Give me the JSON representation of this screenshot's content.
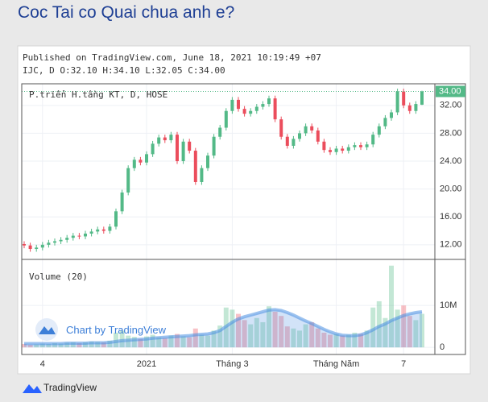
{
  "post": {
    "title": "Coc Tai co Quai chua anh e?"
  },
  "chart_data": {
    "type": "candlestick",
    "published": "Published on TradingView.com, June 18, 2021 10:19:49 +07",
    "legend": "IJC, D O:32.10 H:34.10 L:32.05 C:34.00",
    "pane_title": "P.triển H.tầng KT, D, HOSE",
    "categories": [
      null,
      null,
      null,
      "4",
      null,
      null,
      null,
      null,
      null,
      null,
      null,
      null,
      null,
      null,
      null,
      null,
      null,
      null,
      null,
      null,
      "2021",
      null,
      null,
      null,
      null,
      null,
      null,
      null,
      null,
      null,
      null,
      null,
      null,
      null,
      "Tháng 3",
      null,
      null,
      null,
      null,
      null,
      null,
      null,
      null,
      null,
      null,
      null,
      null,
      null,
      null,
      null,
      null,
      "Tháng Năm",
      null,
      null,
      null,
      null,
      null,
      null,
      null,
      null,
      null,
      null,
      "7",
      null,
      null,
      null
    ],
    "open": [
      12.1,
      11.9,
      11.4,
      11.6,
      12.0,
      12.3,
      12.5,
      12.7,
      13.0,
      13.3,
      13.2,
      13.6,
      13.9,
      14.2,
      14.0,
      14.6,
      16.8,
      19.5,
      23.0,
      24.2,
      23.8,
      25.0,
      26.5,
      27.4,
      27.0,
      27.8,
      24.0,
      26.8,
      25.5,
      21.0,
      23.0,
      24.8,
      27.5,
      28.8,
      31.2,
      32.8,
      31.5,
      30.8,
      31.2,
      31.8,
      32.2,
      33.0,
      30.0,
      27.5,
      26.2,
      27.2,
      28.0,
      29.0,
      28.4,
      26.8,
      25.6,
      25.3,
      25.8,
      25.5,
      26.0,
      26.3,
      26.0,
      26.4,
      27.8,
      29.0,
      30.2,
      31.0,
      34.0,
      32.0,
      31.2,
      32.1
    ],
    "high": [
      12.5,
      12.3,
      12.0,
      12.4,
      12.7,
      12.9,
      13.1,
      13.4,
      13.7,
      13.7,
      14.0,
      14.3,
      14.6,
      14.6,
      15.0,
      17.2,
      19.9,
      23.4,
      24.6,
      24.6,
      25.4,
      26.9,
      27.8,
      27.8,
      28.2,
      28.2,
      27.2,
      27.2,
      25.9,
      23.4,
      25.2,
      27.9,
      29.2,
      31.6,
      33.2,
      33.2,
      31.9,
      31.6,
      32.2,
      32.6,
      33.4,
      33.4,
      30.4,
      27.9,
      27.6,
      28.4,
      29.4,
      29.4,
      28.8,
      27.2,
      26.0,
      26.2,
      26.2,
      26.4,
      26.7,
      26.7,
      26.8,
      28.2,
      29.4,
      30.6,
      31.4,
      34.4,
      34.4,
      32.4,
      32.6,
      34.1
    ],
    "low": [
      11.5,
      11.0,
      11.0,
      11.2,
      11.6,
      11.9,
      12.1,
      12.3,
      12.6,
      12.8,
      12.8,
      13.2,
      13.5,
      13.6,
      13.6,
      14.2,
      16.4,
      19.1,
      22.6,
      23.4,
      23.4,
      24.6,
      26.1,
      26.6,
      26.6,
      23.6,
      23.6,
      25.1,
      20.6,
      20.6,
      22.6,
      24.4,
      27.1,
      28.4,
      30.8,
      31.1,
      30.4,
      30.4,
      30.8,
      31.4,
      31.8,
      29.6,
      27.1,
      25.8,
      25.8,
      26.8,
      27.6,
      28.0,
      26.4,
      25.2,
      24.9,
      24.9,
      25.1,
      25.1,
      25.6,
      25.6,
      25.6,
      26.0,
      27.4,
      28.6,
      29.8,
      30.6,
      31.6,
      30.8,
      30.8,
      32.05
    ],
    "close": [
      11.9,
      11.4,
      11.6,
      12.0,
      12.3,
      12.5,
      12.7,
      13.0,
      13.3,
      13.2,
      13.6,
      13.9,
      14.2,
      14.0,
      14.6,
      16.8,
      19.5,
      23.0,
      24.2,
      23.8,
      25.0,
      26.5,
      27.4,
      27.0,
      27.8,
      24.0,
      26.8,
      25.5,
      21.0,
      23.0,
      24.8,
      27.5,
      28.8,
      31.2,
      32.8,
      31.5,
      30.8,
      31.2,
      31.8,
      32.2,
      33.0,
      30.0,
      27.5,
      26.2,
      27.2,
      28.0,
      29.0,
      28.4,
      26.8,
      25.6,
      25.3,
      25.8,
      25.5,
      26.0,
      26.3,
      26.0,
      26.4,
      27.8,
      29.0,
      30.2,
      31.0,
      34.0,
      32.0,
      31.2,
      32.2,
      34.0
    ],
    "up_color": "#53b987",
    "down_color": "#eb4d5c",
    "ylim": [
      9.9,
      35.1
    ],
    "yticks": [
      {
        "value": 12,
        "label": "12.00"
      },
      {
        "value": 16,
        "label": "16.00"
      },
      {
        "value": 20,
        "label": "20.00"
      },
      {
        "value": 24,
        "label": "24.00"
      },
      {
        "value": 28,
        "label": "28.00"
      },
      {
        "value": 32,
        "label": "32.00"
      }
    ],
    "last_price": {
      "value": 34,
      "label": "34.00"
    },
    "volume": {
      "title": "Volume (20)",
      "values": [
        0.8,
        0.6,
        0.7,
        0.9,
        0.8,
        1.0,
        0.9,
        1.1,
        1.2,
        1.0,
        1.2,
        1.4,
        1.3,
        1.2,
        1.6,
        3.5,
        4.0,
        2.8,
        2.5,
        2.0,
        2.6,
        3.0,
        2.4,
        2.2,
        2.8,
        3.2,
        2.6,
        2.4,
        4.5,
        3.0,
        2.8,
        4.0,
        5.2,
        9.5,
        9.0,
        8.0,
        6.5,
        5.5,
        7.0,
        6.0,
        9.8,
        8.5,
        7.5,
        5.0,
        4.5,
        4.0,
        5.5,
        6.0,
        4.5,
        3.5,
        3.0,
        3.2,
        2.8,
        3.0,
        3.5,
        3.2,
        4.0,
        9.5,
        11.0,
        7.0,
        19.5,
        9.0,
        10.0,
        7.5,
        6.5,
        8.0
      ],
      "ma": [
        0.9,
        0.9,
        0.9,
        0.9,
        0.9,
        0.9,
        0.9,
        1.0,
        1.0,
        1.0,
        1.0,
        1.1,
        1.1,
        1.1,
        1.2,
        1.4,
        1.6,
        1.7,
        1.8,
        1.9,
        2.0,
        2.2,
        2.3,
        2.4,
        2.5,
        2.6,
        2.7,
        2.8,
        3.0,
        3.1,
        3.2,
        3.5,
        4.0,
        5.0,
        6.0,
        6.8,
        7.3,
        7.7,
        8.1,
        8.5,
        8.9,
        9.0,
        8.8,
        8.3,
        7.7,
        7.0,
        6.3,
        5.7,
        5.0,
        4.3,
        3.7,
        3.2,
        2.9,
        2.8,
        2.8,
        3.0,
        3.5,
        4.2,
        5.0,
        5.6,
        6.4,
        7.0,
        7.6,
        8.0,
        8.3,
        8.5
      ],
      "ma_color": "#4a90e2",
      "ylim": [
        -1.7,
        20.8
      ],
      "yticks": [
        0,
        {
          "value": 10,
          "label": "10M"
        }
      ]
    },
    "watermark": "Chart by TradingView"
  },
  "footer": {
    "brand": "TradingView"
  }
}
